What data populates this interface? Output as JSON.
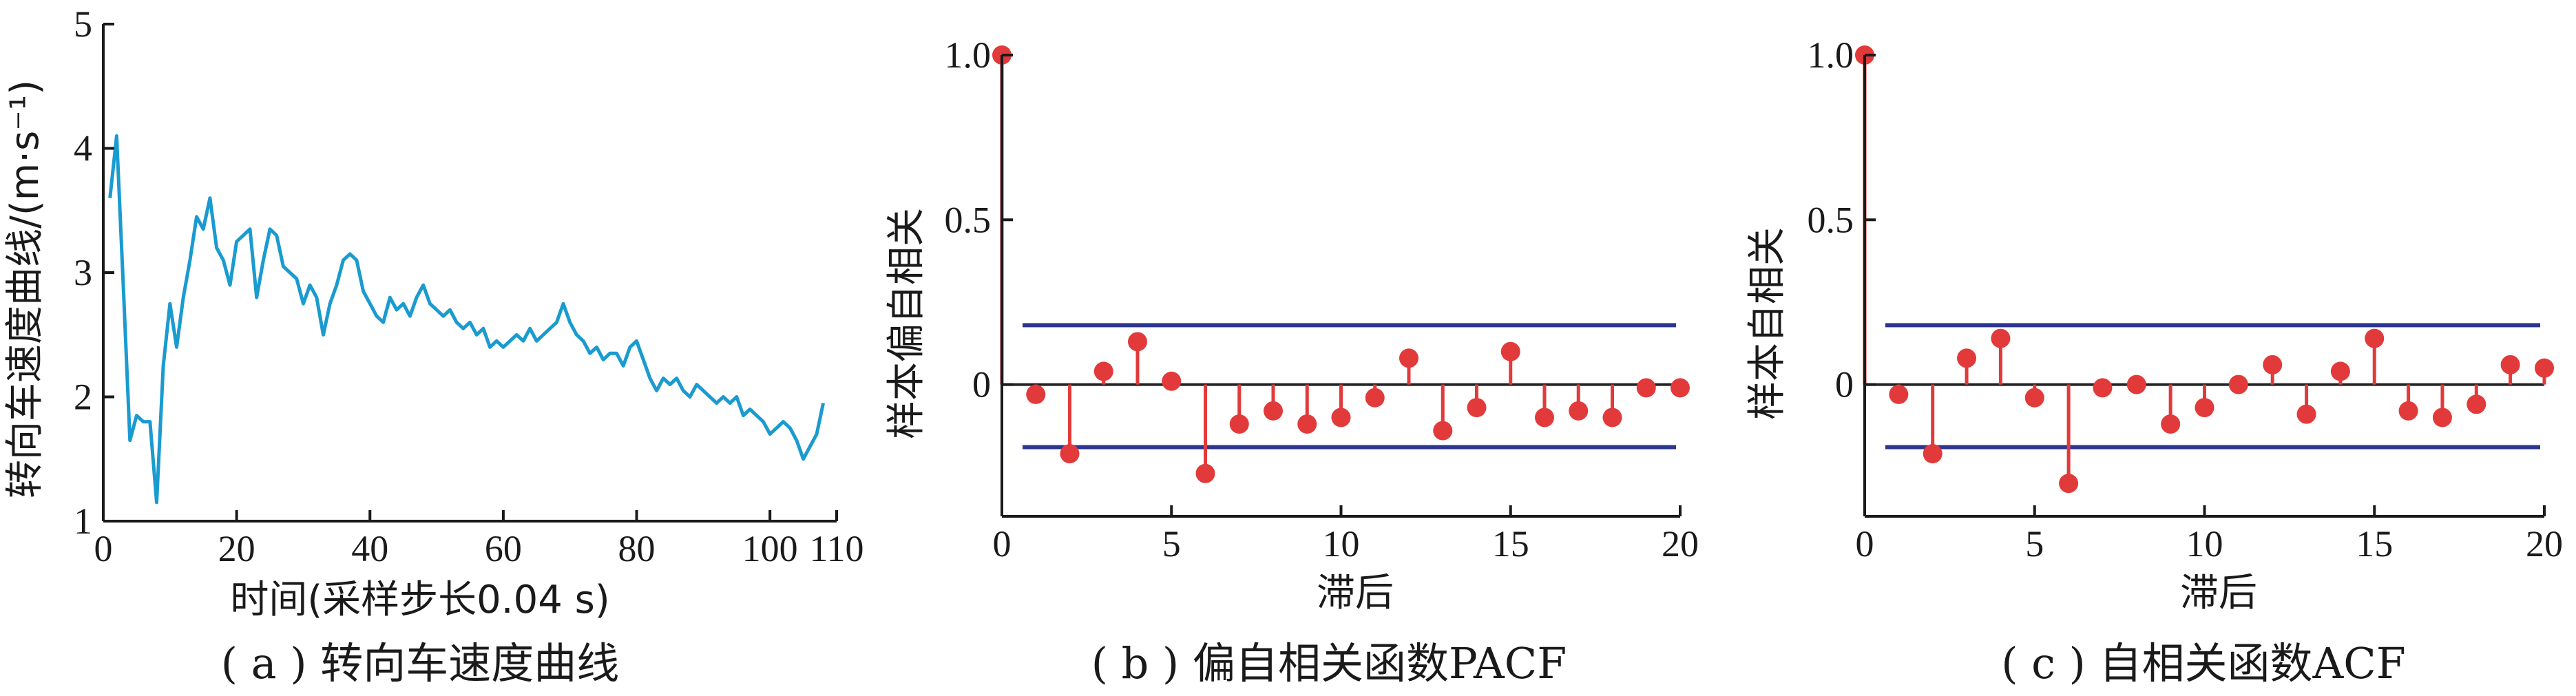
{
  "colors": {
    "line": "#1a9bd0",
    "stem": "#e23a3a",
    "confidence": "#2c3590",
    "axis": "#1a1a1a"
  },
  "chart_data": [
    {
      "type": "line",
      "caption": "( a ) 转向车速度曲线",
      "title": "",
      "xlabel": "时间(采样步长0.04 s)",
      "ylabel": "转向车速度曲线/(m·s⁻¹)",
      "xlim": [
        0,
        110
      ],
      "ylim": [
        1,
        5
      ],
      "xticks": [
        0,
        20,
        40,
        60,
        80,
        100,
        110
      ],
      "yticks": [
        1,
        2,
        3,
        4,
        5
      ],
      "grid": false,
      "x": [
        1,
        2,
        3,
        4,
        5,
        6,
        7,
        8,
        9,
        10,
        11,
        12,
        13,
        14,
        15,
        16,
        17,
        18,
        19,
        20,
        21,
        22,
        23,
        24,
        25,
        26,
        27,
        28,
        29,
        30,
        31,
        32,
        33,
        34,
        35,
        36,
        37,
        38,
        39,
        40,
        41,
        42,
        43,
        44,
        45,
        46,
        47,
        48,
        49,
        50,
        51,
        52,
        53,
        54,
        55,
        56,
        57,
        58,
        59,
        60,
        61,
        62,
        63,
        64,
        65,
        66,
        67,
        68,
        69,
        70,
        71,
        72,
        73,
        74,
        75,
        76,
        77,
        78,
        79,
        80,
        81,
        82,
        83,
        84,
        85,
        86,
        87,
        88,
        89,
        90,
        91,
        92,
        93,
        94,
        95,
        96,
        97,
        98,
        99,
        100,
        101,
        102,
        103,
        104,
        105,
        106,
        107,
        108
      ],
      "values": [
        3.6,
        4.1,
        2.9,
        1.65,
        1.85,
        1.8,
        1.8,
        1.15,
        2.25,
        2.75,
        2.4,
        2.8,
        3.1,
        3.45,
        3.35,
        3.6,
        3.2,
        3.1,
        2.9,
        3.25,
        3.3,
        3.35,
        2.8,
        3.1,
        3.35,
        3.3,
        3.05,
        3.0,
        2.95,
        2.75,
        2.9,
        2.8,
        2.5,
        2.75,
        2.9,
        3.1,
        3.15,
        3.1,
        2.85,
        2.75,
        2.65,
        2.6,
        2.8,
        2.7,
        2.75,
        2.65,
        2.8,
        2.9,
        2.75,
        2.7,
        2.65,
        2.7,
        2.6,
        2.55,
        2.6,
        2.5,
        2.55,
        2.4,
        2.45,
        2.4,
        2.45,
        2.5,
        2.45,
        2.55,
        2.45,
        2.5,
        2.55,
        2.6,
        2.75,
        2.6,
        2.5,
        2.45,
        2.35,
        2.4,
        2.3,
        2.35,
        2.35,
        2.25,
        2.4,
        2.45,
        2.3,
        2.15,
        2.05,
        2.15,
        2.1,
        2.15,
        2.05,
        2.0,
        2.1,
        2.05,
        2.0,
        1.95,
        2.0,
        1.95,
        2.0,
        1.85,
        1.9,
        1.85,
        1.8,
        1.7,
        1.75,
        1.8,
        1.75,
        1.65,
        1.5,
        1.6,
        1.7,
        1.95
      ]
    },
    {
      "type": "stem",
      "caption": "( b ) 偏自相关函数PACF",
      "title": "",
      "xlabel": "滞后",
      "ylabel": "样本偏自相关",
      "xlim": [
        0,
        20
      ],
      "ylim": [
        -0.4,
        1.0
      ],
      "xticks": [
        0,
        5,
        10,
        15,
        20
      ],
      "yticks": [
        0,
        0.5,
        1.0
      ],
      "ytick_labels": [
        "0",
        "0.5",
        "1.0"
      ],
      "confidence_bounds": [
        0.18,
        -0.19
      ],
      "grid": false,
      "x": [
        0,
        1,
        2,
        3,
        4,
        5,
        6,
        7,
        8,
        9,
        10,
        11,
        12,
        13,
        14,
        15,
        16,
        17,
        18,
        19,
        20
      ],
      "values": [
        1.0,
        -0.03,
        -0.21,
        0.04,
        0.13,
        0.01,
        -0.27,
        -0.12,
        -0.08,
        -0.12,
        -0.1,
        -0.04,
        0.08,
        -0.14,
        -0.07,
        0.1,
        -0.1,
        -0.08,
        -0.1,
        -0.01,
        -0.01
      ]
    },
    {
      "type": "stem",
      "caption": "( c ) 自相关函数ACF",
      "title": "",
      "xlabel": "滞后",
      "ylabel": "样本自相关",
      "xlim": [
        0,
        20
      ],
      "ylim": [
        -0.4,
        1.0
      ],
      "xticks": [
        0,
        5,
        10,
        15,
        20
      ],
      "yticks": [
        0,
        0.5,
        1.0
      ],
      "ytick_labels": [
        "0",
        "0.5",
        "1.0"
      ],
      "confidence_bounds": [
        0.18,
        -0.19
      ],
      "grid": false,
      "x": [
        0,
        1,
        2,
        3,
        4,
        5,
        6,
        7,
        8,
        9,
        10,
        11,
        12,
        13,
        14,
        15,
        16,
        17,
        18,
        19,
        20
      ],
      "values": [
        1.0,
        -0.03,
        -0.21,
        0.08,
        0.14,
        -0.04,
        -0.3,
        -0.01,
        0.0,
        -0.12,
        -0.07,
        0.0,
        0.06,
        -0.09,
        0.04,
        0.14,
        -0.08,
        -0.1,
        -0.06,
        0.06,
        0.05
      ]
    }
  ]
}
